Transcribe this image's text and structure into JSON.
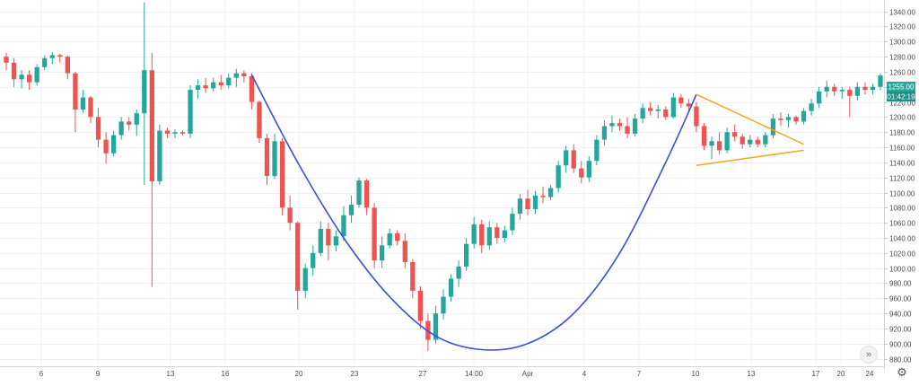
{
  "chart_data": {
    "type": "candlestick",
    "title": "",
    "ylim": [
      870,
      1355
    ],
    "y_ticks": [
      880,
      900,
      920,
      940,
      960,
      980,
      1000,
      1020,
      1040,
      1060,
      1080,
      1100,
      1120,
      1140,
      1160,
      1180,
      1200,
      1220,
      1240,
      1260,
      1280,
      1300,
      1320,
      1340
    ],
    "x_ticks": [
      "6",
      "9",
      "13",
      "16",
      "20",
      "23",
      "27",
      "14:00",
      "Apr",
      "4",
      "7",
      "10",
      "13",
      "17",
      "20",
      "24"
    ],
    "current_price": "1255.00",
    "countdown": "01:42:19",
    "colors": {
      "up": "#26a69a",
      "down": "#ef5350",
      "cup": "#3b4ee0",
      "triangle": "#f5a623",
      "price_badge": "#26a69a",
      "grid": "#eef0f3"
    },
    "candles": [
      {
        "o": 1280,
        "h": 1285,
        "l": 1262,
        "c": 1272
      },
      {
        "o": 1272,
        "h": 1278,
        "l": 1240,
        "c": 1250
      },
      {
        "o": 1250,
        "h": 1262,
        "l": 1238,
        "c": 1256
      },
      {
        "o": 1256,
        "h": 1262,
        "l": 1236,
        "c": 1246
      },
      {
        "o": 1246,
        "h": 1270,
        "l": 1242,
        "c": 1266
      },
      {
        "o": 1266,
        "h": 1282,
        "l": 1262,
        "c": 1278
      },
      {
        "o": 1278,
        "h": 1286,
        "l": 1270,
        "c": 1282
      },
      {
        "o": 1282,
        "h": 1284,
        "l": 1272,
        "c": 1280
      },
      {
        "o": 1280,
        "h": 1282,
        "l": 1250,
        "c": 1258
      },
      {
        "o": 1258,
        "h": 1260,
        "l": 1180,
        "c": 1210
      },
      {
        "o": 1210,
        "h": 1236,
        "l": 1206,
        "c": 1226
      },
      {
        "o": 1226,
        "h": 1228,
        "l": 1192,
        "c": 1200
      },
      {
        "o": 1200,
        "h": 1212,
        "l": 1160,
        "c": 1170
      },
      {
        "o": 1170,
        "h": 1180,
        "l": 1138,
        "c": 1152
      },
      {
        "o": 1152,
        "h": 1182,
        "l": 1148,
        "c": 1176
      },
      {
        "o": 1176,
        "h": 1200,
        "l": 1170,
        "c": 1194
      },
      {
        "o": 1194,
        "h": 1200,
        "l": 1182,
        "c": 1190
      },
      {
        "o": 1190,
        "h": 1210,
        "l": 1175,
        "c": 1205
      },
      {
        "o": 1205,
        "h": 1352,
        "l": 1110,
        "c": 1262
      },
      {
        "o": 1262,
        "h": 1285,
        "l": 975,
        "c": 1115
      },
      {
        "o": 1115,
        "h": 1190,
        "l": 1110,
        "c": 1182
      },
      {
        "o": 1182,
        "h": 1186,
        "l": 1172,
        "c": 1178
      },
      {
        "o": 1178,
        "h": 1184,
        "l": 1172,
        "c": 1180
      },
      {
        "o": 1180,
        "h": 1182,
        "l": 1176,
        "c": 1178
      },
      {
        "o": 1178,
        "h": 1242,
        "l": 1172,
        "c": 1236
      },
      {
        "o": 1236,
        "h": 1250,
        "l": 1224,
        "c": 1242
      },
      {
        "o": 1242,
        "h": 1252,
        "l": 1232,
        "c": 1238
      },
      {
        "o": 1238,
        "h": 1252,
        "l": 1234,
        "c": 1246
      },
      {
        "o": 1246,
        "h": 1256,
        "l": 1236,
        "c": 1242
      },
      {
        "o": 1242,
        "h": 1258,
        "l": 1238,
        "c": 1252
      },
      {
        "o": 1252,
        "h": 1264,
        "l": 1240,
        "c": 1258
      },
      {
        "o": 1258,
        "h": 1262,
        "l": 1246,
        "c": 1254
      },
      {
        "o": 1254,
        "h": 1258,
        "l": 1210,
        "c": 1220
      },
      {
        "o": 1220,
        "h": 1222,
        "l": 1166,
        "c": 1172
      },
      {
        "o": 1172,
        "h": 1178,
        "l": 1110,
        "c": 1122
      },
      {
        "o": 1122,
        "h": 1178,
        "l": 1118,
        "c": 1168
      },
      {
        "o": 1168,
        "h": 1172,
        "l": 1070,
        "c": 1080
      },
      {
        "o": 1080,
        "h": 1096,
        "l": 1050,
        "c": 1060
      },
      {
        "o": 1060,
        "h": 1062,
        "l": 945,
        "c": 970
      },
      {
        "o": 970,
        "h": 1006,
        "l": 960,
        "c": 1000
      },
      {
        "o": 1000,
        "h": 1030,
        "l": 990,
        "c": 1020
      },
      {
        "o": 1020,
        "h": 1062,
        "l": 1016,
        "c": 1052
      },
      {
        "o": 1052,
        "h": 1060,
        "l": 1010,
        "c": 1030
      },
      {
        "o": 1030,
        "h": 1050,
        "l": 1022,
        "c": 1042
      },
      {
        "o": 1042,
        "h": 1082,
        "l": 1036,
        "c": 1070
      },
      {
        "o": 1070,
        "h": 1096,
        "l": 1060,
        "c": 1084
      },
      {
        "o": 1084,
        "h": 1120,
        "l": 1080,
        "c": 1116
      },
      {
        "o": 1116,
        "h": 1118,
        "l": 1070,
        "c": 1080
      },
      {
        "o": 1080,
        "h": 1086,
        "l": 1000,
        "c": 1010
      },
      {
        "o": 1010,
        "h": 1042,
        "l": 1000,
        "c": 1030
      },
      {
        "o": 1030,
        "h": 1052,
        "l": 1026,
        "c": 1046
      },
      {
        "o": 1046,
        "h": 1050,
        "l": 1030,
        "c": 1036
      },
      {
        "o": 1036,
        "h": 1046,
        "l": 1000,
        "c": 1008
      },
      {
        "o": 1008,
        "h": 1012,
        "l": 960,
        "c": 970
      },
      {
        "o": 970,
        "h": 976,
        "l": 920,
        "c": 930
      },
      {
        "o": 930,
        "h": 940,
        "l": 890,
        "c": 905
      },
      {
        "o": 905,
        "h": 950,
        "l": 900,
        "c": 940
      },
      {
        "o": 940,
        "h": 972,
        "l": 932,
        "c": 962
      },
      {
        "o": 962,
        "h": 992,
        "l": 956,
        "c": 986
      },
      {
        "o": 986,
        "h": 1010,
        "l": 975,
        "c": 1002
      },
      {
        "o": 1002,
        "h": 1040,
        "l": 996,
        "c": 1032
      },
      {
        "o": 1032,
        "h": 1068,
        "l": 1026,
        "c": 1058
      },
      {
        "o": 1058,
        "h": 1064,
        "l": 1020,
        "c": 1030
      },
      {
        "o": 1030,
        "h": 1062,
        "l": 1024,
        "c": 1054
      },
      {
        "o": 1054,
        "h": 1060,
        "l": 1032,
        "c": 1040
      },
      {
        "o": 1040,
        "h": 1056,
        "l": 1034,
        "c": 1050
      },
      {
        "o": 1050,
        "h": 1080,
        "l": 1044,
        "c": 1072
      },
      {
        "o": 1072,
        "h": 1098,
        "l": 1064,
        "c": 1092
      },
      {
        "o": 1092,
        "h": 1104,
        "l": 1070,
        "c": 1078
      },
      {
        "o": 1078,
        "h": 1102,
        "l": 1072,
        "c": 1096
      },
      {
        "o": 1096,
        "h": 1108,
        "l": 1086,
        "c": 1094
      },
      {
        "o": 1094,
        "h": 1110,
        "l": 1090,
        "c": 1106
      },
      {
        "o": 1106,
        "h": 1142,
        "l": 1100,
        "c": 1136
      },
      {
        "o": 1136,
        "h": 1162,
        "l": 1126,
        "c": 1156
      },
      {
        "o": 1156,
        "h": 1164,
        "l": 1126,
        "c": 1132
      },
      {
        "o": 1132,
        "h": 1142,
        "l": 1112,
        "c": 1120
      },
      {
        "o": 1120,
        "h": 1148,
        "l": 1114,
        "c": 1142
      },
      {
        "o": 1142,
        "h": 1176,
        "l": 1136,
        "c": 1170
      },
      {
        "o": 1170,
        "h": 1196,
        "l": 1162,
        "c": 1188
      },
      {
        "o": 1188,
        "h": 1202,
        "l": 1180,
        "c": 1192
      },
      {
        "o": 1192,
        "h": 1198,
        "l": 1182,
        "c": 1188
      },
      {
        "o": 1188,
        "h": 1200,
        "l": 1172,
        "c": 1178
      },
      {
        "o": 1178,
        "h": 1204,
        "l": 1174,
        "c": 1198
      },
      {
        "o": 1198,
        "h": 1218,
        "l": 1192,
        "c": 1212
      },
      {
        "o": 1212,
        "h": 1220,
        "l": 1202,
        "c": 1208
      },
      {
        "o": 1208,
        "h": 1216,
        "l": 1198,
        "c": 1210
      },
      {
        "o": 1210,
        "h": 1214,
        "l": 1196,
        "c": 1200
      },
      {
        "o": 1200,
        "h": 1232,
        "l": 1198,
        "c": 1226
      },
      {
        "o": 1226,
        "h": 1230,
        "l": 1212,
        "c": 1218
      },
      {
        "o": 1218,
        "h": 1224,
        "l": 1208,
        "c": 1214
      },
      {
        "o": 1214,
        "h": 1220,
        "l": 1180,
        "c": 1188
      },
      {
        "o": 1188,
        "h": 1192,
        "l": 1156,
        "c": 1162
      },
      {
        "o": 1162,
        "h": 1174,
        "l": 1144,
        "c": 1168
      },
      {
        "o": 1168,
        "h": 1180,
        "l": 1150,
        "c": 1156
      },
      {
        "o": 1156,
        "h": 1186,
        "l": 1152,
        "c": 1180
      },
      {
        "o": 1180,
        "h": 1190,
        "l": 1168,
        "c": 1174
      },
      {
        "o": 1174,
        "h": 1178,
        "l": 1158,
        "c": 1164
      },
      {
        "o": 1164,
        "h": 1176,
        "l": 1160,
        "c": 1170
      },
      {
        "o": 1170,
        "h": 1174,
        "l": 1160,
        "c": 1164
      },
      {
        "o": 1164,
        "h": 1180,
        "l": 1160,
        "c": 1176
      },
      {
        "o": 1176,
        "h": 1204,
        "l": 1172,
        "c": 1198
      },
      {
        "o": 1198,
        "h": 1206,
        "l": 1188,
        "c": 1196
      },
      {
        "o": 1196,
        "h": 1204,
        "l": 1186,
        "c": 1200
      },
      {
        "o": 1200,
        "h": 1202,
        "l": 1190,
        "c": 1194
      },
      {
        "o": 1194,
        "h": 1212,
        "l": 1190,
        "c": 1208
      },
      {
        "o": 1208,
        "h": 1224,
        "l": 1202,
        "c": 1218
      },
      {
        "o": 1218,
        "h": 1240,
        "l": 1212,
        "c": 1234
      },
      {
        "o": 1234,
        "h": 1248,
        "l": 1226,
        "c": 1240
      },
      {
        "o": 1240,
        "h": 1244,
        "l": 1228,
        "c": 1234
      },
      {
        "o": 1234,
        "h": 1240,
        "l": 1224,
        "c": 1236
      },
      {
        "o": 1236,
        "h": 1240,
        "l": 1200,
        "c": 1228
      },
      {
        "o": 1228,
        "h": 1246,
        "l": 1222,
        "c": 1240
      },
      {
        "o": 1240,
        "h": 1246,
        "l": 1230,
        "c": 1236
      },
      {
        "o": 1236,
        "h": 1244,
        "l": 1230,
        "c": 1240
      },
      {
        "o": 1240,
        "h": 1258,
        "l": 1236,
        "c": 1255
      }
    ],
    "cup_curve": [
      {
        "i": 32,
        "p": 1256
      },
      {
        "i": 38,
        "p": 1140
      },
      {
        "i": 44,
        "p": 1040
      },
      {
        "i": 50,
        "p": 962
      },
      {
        "i": 56,
        "p": 910
      },
      {
        "i": 62,
        "p": 892
      },
      {
        "i": 68,
        "p": 900
      },
      {
        "i": 74,
        "p": 940
      },
      {
        "i": 80,
        "p": 1020
      },
      {
        "i": 86,
        "p": 1140
      },
      {
        "i": 90,
        "p": 1230
      }
    ],
    "triangle": {
      "upper": [
        {
          "i": 90,
          "p": 1230
        },
        {
          "i": 104,
          "p": 1164
        }
      ],
      "lower": [
        {
          "i": 90,
          "p": 1136
        },
        {
          "i": 104,
          "p": 1156
        }
      ]
    }
  }
}
